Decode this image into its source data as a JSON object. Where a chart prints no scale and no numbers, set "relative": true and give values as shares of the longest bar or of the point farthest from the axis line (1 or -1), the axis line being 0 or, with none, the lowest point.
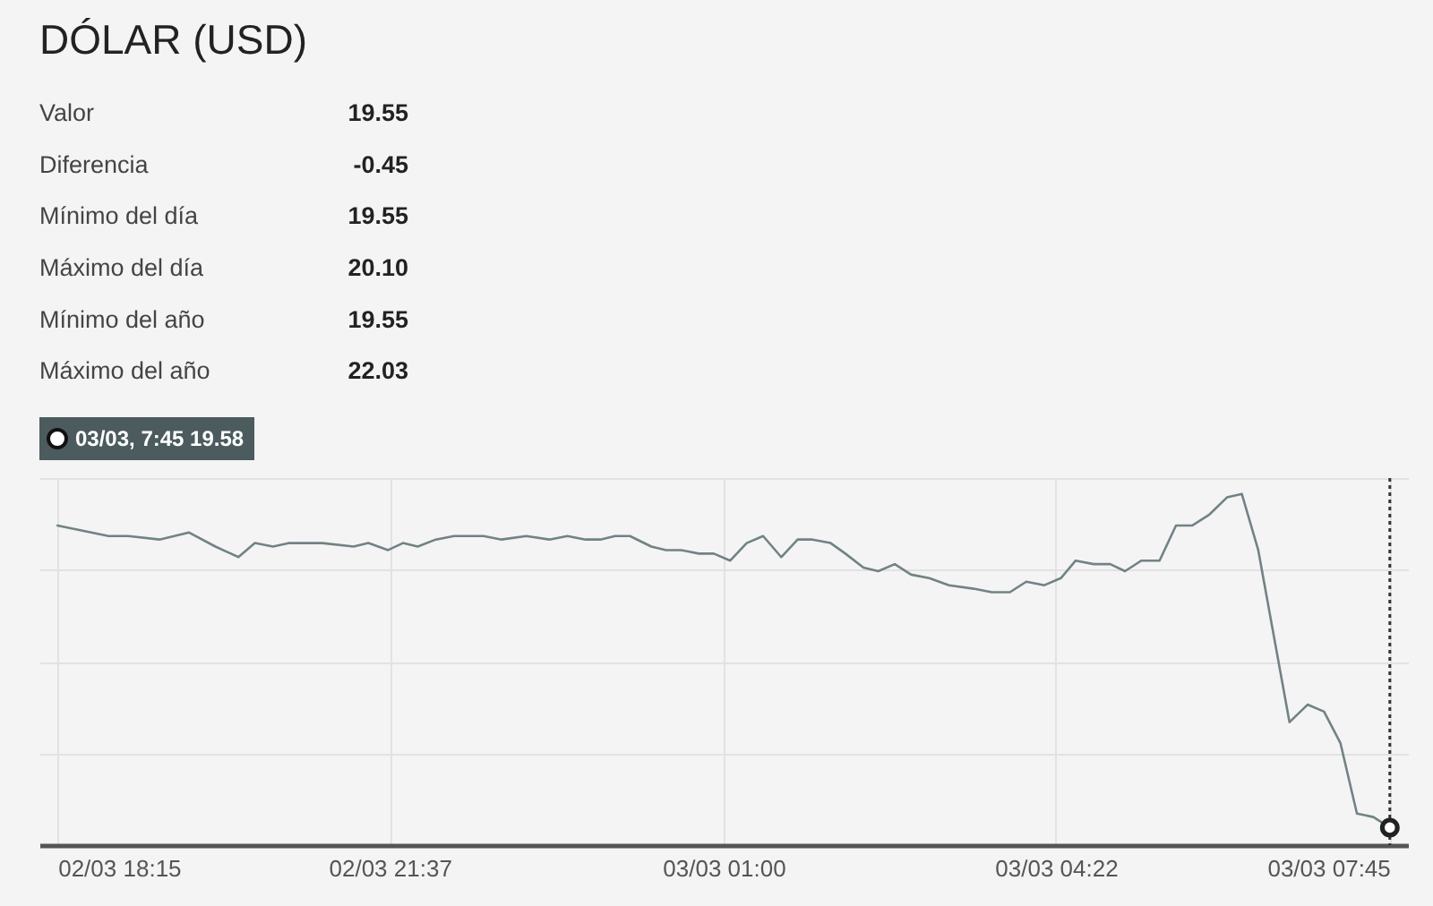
{
  "chart_data": [
    {
      "type": "other",
      "title": "DÓLAR (USD)",
      "categories": [
        "Valor",
        "Diferencia",
        "Mínimo del día",
        "Máximo del día",
        "Mínimo del año",
        "Máximo del año"
      ],
      "values": [
        19.55,
        -0.45,
        19.55,
        20.1,
        19.55,
        22.03
      ],
      "value_labels": [
        "19.55",
        "-0.45",
        "19.55",
        "20.10",
        "19.55",
        "22.03"
      ]
    },
    {
      "type": "line",
      "relative": true,
      "color": "#728285",
      "grid": true,
      "x": [
        "--03-02T18:15",
        "--03-02T18:46",
        "--03-02T18:58",
        "--03-02T19:17",
        "--03-02T19:35",
        "--03-02T19:51",
        "--03-02T20:05",
        "--03-02T20:15",
        "--03-02T20:26",
        "--03-02T20:36",
        "--03-02T20:56",
        "--03-02T21:15",
        "--03-02T21:24",
        "--03-02T21:36",
        "--03-02T21:45",
        "--03-02T21:54",
        "--03-02T22:05",
        "--03-02T22:16",
        "--03-02T22:34",
        "--03-02T22:45",
        "--03-02T23:00",
        "--03-02T23:14",
        "--03-02T23:25",
        "--03-02T23:36",
        "--03-02T23:45",
        "--03-02T23:54",
        "--03-03T00:03",
        "--03-03T00:16",
        "--03-03T00:25",
        "--03-03T00:34",
        "--03-03T00:45",
        "--03-03T00:54",
        "--03-03T01:04",
        "--03-03T01:14",
        "--03-03T01:24",
        "--03-03T01:35",
        "--03-03T01:45",
        "--03-03T01:54",
        "--03-03T02:05",
        "--03-03T02:14",
        "--03-03T02:25",
        "--03-03T02:34",
        "--03-03T02:44",
        "--03-03T02:54",
        "--03-03T03:05",
        "--03-03T03:17",
        "--03-03T03:32",
        "--03-03T03:43",
        "--03-03T03:54",
        "--03-03T04:04",
        "--03-03T04:15",
        "--03-03T04:25",
        "--03-03T04:34",
        "--03-03T04:45",
        "--03-03T04:55",
        "--03-03T05:04",
        "--03-03T05:14",
        "--03-03T05:25",
        "--03-03T05:35",
        "--03-03T05:45",
        "--03-03T05:55",
        "--03-03T06:06",
        "--03-03T06:15",
        "--03-03T06:25",
        "--03-03T06:44",
        "--03-03T06:55",
        "--03-03T07:05",
        "--03-03T07:15",
        "--03-03T07:25",
        "--03-03T07:35",
        "--03-03T07:45"
      ],
      "values": [
        0.91,
        0.88,
        0.88,
        0.87,
        0.89,
        0.85,
        0.82,
        0.86,
        0.85,
        0.86,
        0.86,
        0.85,
        0.86,
        0.84,
        0.86,
        0.85,
        0.87,
        0.88,
        0.88,
        0.87,
        0.88,
        0.87,
        0.88,
        0.87,
        0.87,
        0.88,
        0.88,
        0.85,
        0.84,
        0.84,
        0.83,
        0.83,
        0.81,
        0.86,
        0.88,
        0.82,
        0.87,
        0.87,
        0.86,
        0.83,
        0.79,
        0.78,
        0.8,
        0.77,
        0.76,
        0.74,
        0.73,
        0.72,
        0.72,
        0.75,
        0.74,
        0.76,
        0.81,
        0.8,
        0.8,
        0.78,
        0.81,
        0.81,
        0.91,
        0.91,
        0.94,
        0.99,
        1.0,
        0.84,
        0.35,
        0.4,
        0.38,
        0.29,
        0.09,
        0.08,
        0.05
      ],
      "xlim": [
        "--03-02T18:04",
        "--03-03T07:56"
      ],
      "xticks": [
        {
          "value": "--03-02T18:15",
          "label": "02/03 18:15"
        },
        {
          "value": "--03-02T21:37",
          "label": "02/03 21:37"
        },
        {
          "value": "--03-03T01:00",
          "label": "03/03 01:00"
        },
        {
          "value": "--03-03T04:22",
          "label": "03/03 04:22"
        },
        {
          "value": "--03-03T07:45",
          "label": "03/03 07:45"
        }
      ],
      "ref_lines": [
        {
          "axis": "x",
          "value": "--03-03T07:45",
          "line_style": "dotted",
          "color": "#333333"
        }
      ],
      "annotations": [
        "03/03, 7:45 19.58"
      ]
    }
  ]
}
